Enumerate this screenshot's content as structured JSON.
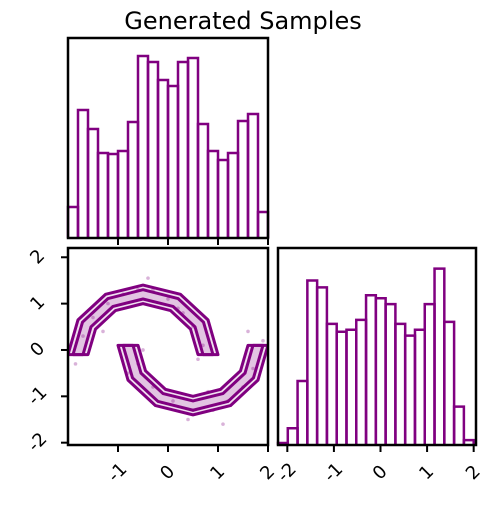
{
  "chart_data": [
    {
      "type": "histogram",
      "title": "Generated Samples",
      "color": "#800080",
      "bins": [
        -2,
        -1.8,
        -1.6,
        -1.4,
        -1.2,
        -1,
        -0.8,
        -0.6,
        -0.4,
        -0.2,
        0,
        0.2,
        0.4,
        0.6,
        0.8,
        1,
        1.2,
        1.4,
        1.6,
        1.8,
        2
      ],
      "values": [
        31,
        128,
        109,
        85,
        84,
        87,
        116,
        182,
        176,
        158,
        152,
        176,
        180,
        114,
        87,
        78,
        85,
        117,
        124,
        26
      ],
      "xlim": [
        -2,
        2
      ],
      "ylim": [
        0,
        200
      ],
      "xticks": [
        -1,
        0,
        1,
        2
      ]
    },
    {
      "type": "scatter",
      "color": "#800080",
      "x": [
        -1.7,
        -1.5,
        -1.2,
        -0.9,
        -0.6,
        -0.3,
        0.0,
        0.3,
        0.5,
        0.7,
        -1.85,
        -1.3,
        -0.4,
        0.2,
        0.6,
        -0.6,
        -0.3,
        0.1,
        0.5,
        0.9,
        1.2,
        1.5,
        1.7,
        1.9,
        1.1,
        0.4,
        -0.5,
        0.8,
        1.6,
        -0.8
      ],
      "y": [
        0.3,
        0.7,
        1.0,
        1.2,
        1.3,
        1.3,
        1.1,
        0.8,
        0.5,
        0.1,
        -0.3,
        0.4,
        1.55,
        0.9,
        -0.2,
        -0.3,
        -0.8,
        -1.1,
        -1.3,
        -1.3,
        -1.1,
        -0.8,
        -0.4,
        0.2,
        -1.6,
        -1.5,
        0.0,
        -0.9,
        0.4,
        -0.5
      ],
      "contours": [
        {
          "x": [
            1.0,
            0.8,
            0.25,
            -0.5,
            -1.25,
            -1.8,
            -2.0,
            -1.6,
            -1.45,
            -1.05,
            -0.5,
            0.05,
            0.45,
            0.6
          ],
          "y": [
            -0.1,
            0.65,
            1.2,
            1.4,
            1.2,
            0.65,
            -0.1,
            -0.1,
            0.45,
            0.85,
            1.0,
            0.85,
            0.45,
            -0.1
          ]
        },
        {
          "x": [
            0.9,
            0.71,
            0.2,
            -0.5,
            -1.2,
            -1.71,
            -1.9,
            -1.7,
            -1.54,
            -1.1,
            -0.5,
            0.1,
            0.54,
            0.7
          ],
          "y": [
            -0.1,
            0.6,
            1.11,
            1.3,
            1.11,
            0.6,
            -0.1,
            -0.1,
            0.5,
            0.94,
            1.1,
            0.94,
            0.5,
            -0.1
          ]
        },
        {
          "x": [
            -1.0,
            -0.8,
            -0.25,
            0.5,
            1.25,
            1.8,
            2.0,
            1.6,
            1.45,
            1.05,
            0.5,
            -0.05,
            -0.45,
            -0.6
          ],
          "y": [
            0.1,
            -0.65,
            -1.2,
            -1.4,
            -1.2,
            -0.65,
            0.1,
            0.1,
            -0.45,
            -0.85,
            -1.0,
            -0.85,
            -0.45,
            0.1
          ]
        },
        {
          "x": [
            -0.9,
            -0.71,
            -0.2,
            0.5,
            1.2,
            1.71,
            1.9,
            1.7,
            1.54,
            1.1,
            0.5,
            -0.1,
            -0.54,
            -0.7
          ],
          "y": [
            0.1,
            -0.6,
            -1.11,
            -1.3,
            -1.11,
            -0.6,
            0.1,
            0.1,
            -0.5,
            -0.94,
            -1.1,
            -0.94,
            -0.5,
            0.1
          ]
        }
      ],
      "xlim": [
        -2,
        2
      ],
      "ylim": [
        -2.05,
        2.2
      ],
      "xticks": [
        -1,
        0,
        1,
        2
      ],
      "yticks": [
        -2,
        -1,
        0,
        1,
        2
      ]
    },
    {
      "type": "histogram",
      "color": "#800080",
      "bins": [
        -2.2,
        -1.99,
        -1.78,
        -1.57,
        -1.36,
        -1.15,
        -0.94,
        -0.73,
        -0.52,
        -0.31,
        -0.1,
        0.11,
        0.32,
        0.53,
        0.74,
        0.95,
        1.16,
        1.37,
        1.58,
        1.79,
        2.0
      ],
      "values": [
        2,
        17,
        65,
        167,
        160,
        123,
        115,
        117,
        127,
        152,
        149,
        143,
        123,
        111,
        117,
        143,
        179,
        125,
        39,
        5
      ],
      "xlim": [
        -2.2,
        2.05
      ],
      "ylim": [
        0,
        200
      ],
      "xticks": [
        -2,
        -1,
        0,
        1,
        2
      ]
    }
  ]
}
